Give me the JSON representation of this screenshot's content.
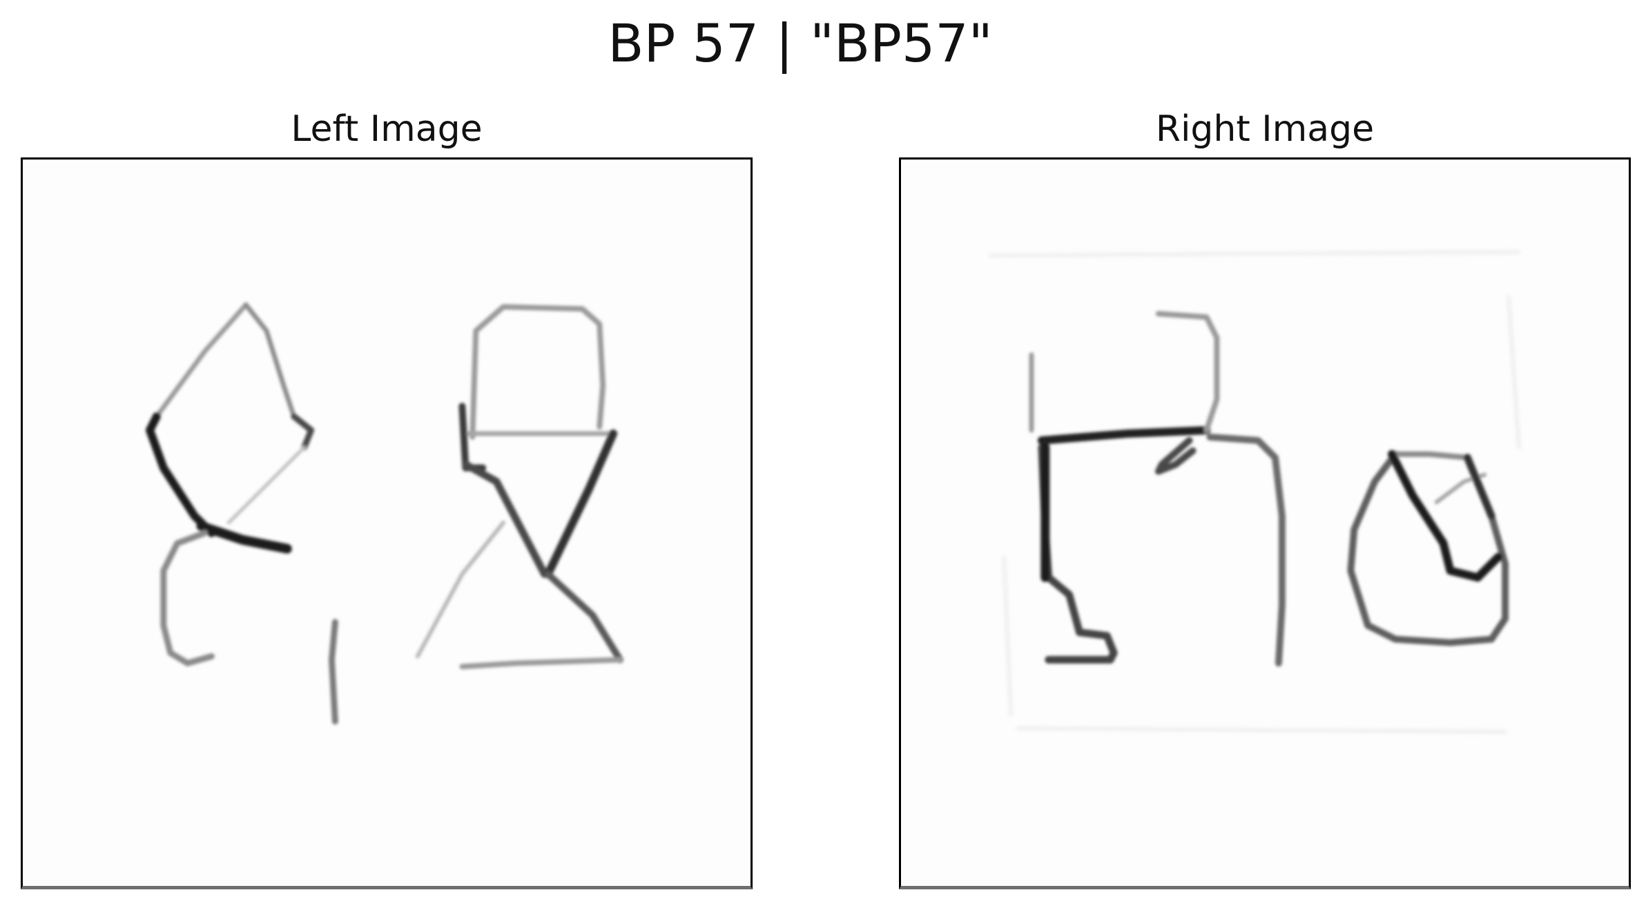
{
  "figure": {
    "title": "BP 57 | \"BP57\""
  },
  "panels": [
    {
      "title": "Left Image"
    },
    {
      "title": "Right Image"
    }
  ],
  "colors": {
    "background": "#ffffff",
    "frame": "#000000",
    "ink": "#111111"
  }
}
